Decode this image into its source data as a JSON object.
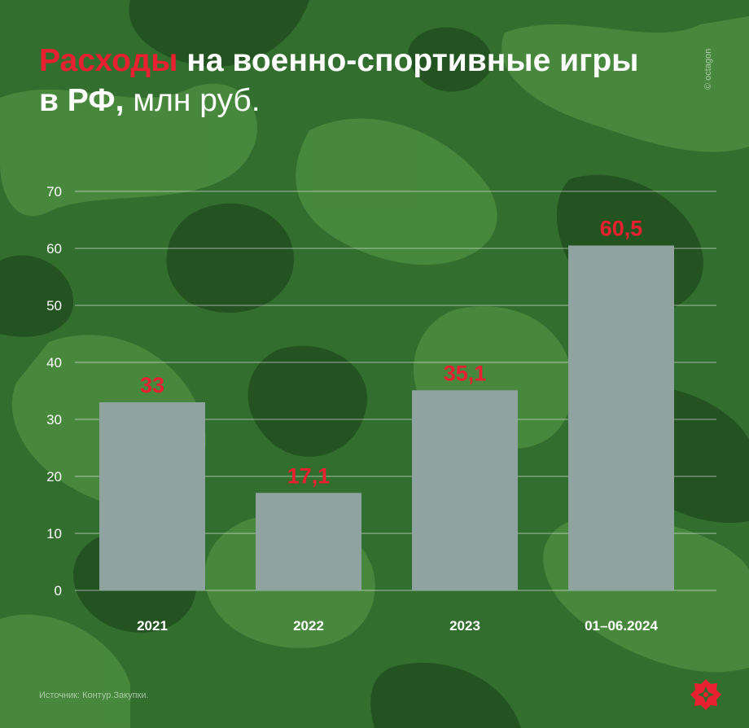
{
  "header": {
    "title_accent": "Расходы",
    "title_bold_rest": " на военно-спортивные игры в РФ,",
    "title_unit": " млн руб."
  },
  "copyright": "© octagon",
  "source": "Источник: Контур.Закупки.",
  "colors": {
    "accent": "#e8202f",
    "bar": "#8fa3a0",
    "axis_text": "#ffffff",
    "grid": "rgba(255,255,255,0.55)"
  },
  "logo_icon": "octagon-logo-icon",
  "chart_data": {
    "type": "bar",
    "categories": [
      "2021",
      "2022",
      "2023",
      "01–06.2024"
    ],
    "values": [
      33,
      17.1,
      35.1,
      60.5
    ],
    "value_labels": [
      "33",
      "17,1",
      "35,1",
      "60,5"
    ],
    "y_ticks": [
      0,
      10,
      20,
      30,
      40,
      50,
      60,
      70
    ],
    "ylim": [
      0,
      70
    ],
    "grid": true,
    "legend": "none"
  }
}
